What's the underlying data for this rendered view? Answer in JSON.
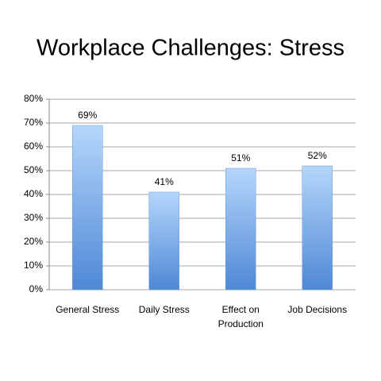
{
  "chart_data": {
    "type": "bar",
    "title": "Workplace Challenges: Stress",
    "categories": [
      "General Stress",
      "Daily Stress",
      "Effect on Production",
      "Job Decisions"
    ],
    "values": [
      69,
      41,
      51,
      52
    ],
    "value_labels": [
      "69%",
      "41%",
      "51%",
      "52%"
    ],
    "color": "#4f88d6",
    "ylim": [
      0,
      80
    ],
    "yticks": [
      {
        "value": 0,
        "label": "0%"
      },
      {
        "value": 10,
        "label": "10%"
      },
      {
        "value": 20,
        "label": "20%"
      },
      {
        "value": 30,
        "label": "30%"
      },
      {
        "value": 40,
        "label": "40%"
      },
      {
        "value": 50,
        "label": "50%"
      },
      {
        "value": 60,
        "label": "60%"
      },
      {
        "value": 70,
        "label": "70%"
      },
      {
        "value": 80,
        "label": "80%"
      }
    ],
    "grid": true
  }
}
